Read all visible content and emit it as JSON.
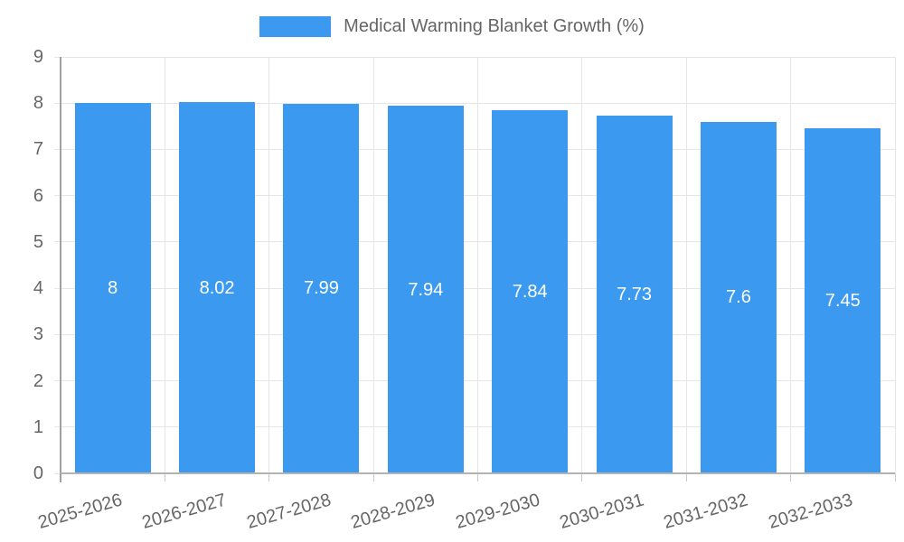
{
  "chart_data": {
    "type": "bar",
    "title": "Medical Warming Blanket Growth (%)",
    "categories": [
      "2025-2026",
      "2026-2027",
      "2027-2028",
      "2028-2029",
      "2029-2030",
      "2030-2031",
      "2031-2032",
      "2032-2033"
    ],
    "values": [
      8,
      8.02,
      7.99,
      7.94,
      7.84,
      7.73,
      7.6,
      7.45
    ],
    "value_labels": [
      "8",
      "8.02",
      "7.99",
      "7.94",
      "7.84",
      "7.73",
      "7.6",
      "7.45"
    ],
    "xlabel": "",
    "ylabel": "",
    "ylim": [
      0,
      9
    ],
    "yticks": [
      0,
      1,
      2,
      3,
      4,
      5,
      6,
      7,
      8,
      9
    ],
    "grid": true,
    "legend_position": "top",
    "colors": {
      "bar": "#3b9af0",
      "text": "#666666",
      "grid": "#e6e6e6",
      "y_axis": "#a0a0a0",
      "x_axis": "#b3b3b3",
      "tick": "#c9c9c9",
      "value_label": "#ffffff"
    }
  }
}
